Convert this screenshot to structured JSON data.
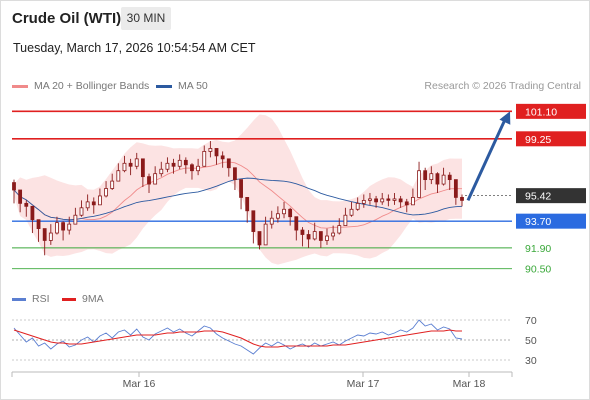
{
  "header": {
    "title": "Crude Oil (WTI)",
    "timeframe": "30 MIN",
    "datetime": "Tuesday, March 17, 2026 10:54:54 AM CET",
    "credit": "Research © 2026 Trading Central"
  },
  "legend_main": [
    {
      "label": "MA 20 + Bollinger Bands",
      "color": "#f08a8a"
    },
    {
      "label": "MA 50",
      "color": "#2c5aa0"
    }
  ],
  "legend_rsi": [
    {
      "label": "RSI",
      "color": "#5b7fd1"
    },
    {
      "label": "9MA",
      "color": "#e02020"
    }
  ],
  "colors": {
    "resistance": "#e02020",
    "current": "#333333",
    "pivot": "#2b6be0",
    "support": "#3aa83a",
    "candle": "#8a1a1a",
    "bb_fill": "#fbdada",
    "ma50": "#2c5aa0",
    "forecast_arrow": "#2c5aa0"
  },
  "chart_data": [
    {
      "type": "candlestick",
      "title": "Crude Oil (WTI)",
      "timeframe": "30 MIN",
      "x_ticks": [
        "Mar 16",
        "Mar 17",
        "Mar 18"
      ],
      "ylim": [
        89.6,
        102.0
      ],
      "levels": [
        {
          "label": "101.10",
          "value": 101.1,
          "kind": "resistance"
        },
        {
          "label": "99.25",
          "value": 99.25,
          "kind": "resistance"
        },
        {
          "label": "95.42",
          "value": 95.42,
          "kind": "current"
        },
        {
          "label": "93.70",
          "value": 93.7,
          "kind": "pivot"
        },
        {
          "label": "91.90",
          "value": 91.9,
          "kind": "support"
        },
        {
          "label": "90.50",
          "value": 90.5,
          "kind": "support"
        }
      ],
      "series": [
        {
          "name": "MA 20 + Bollinger Bands",
          "type": "band"
        },
        {
          "name": "MA 50",
          "type": "line"
        }
      ],
      "forecast": {
        "from": 95.1,
        "to": 101.1,
        "direction": "up"
      },
      "closes": [
        95.8,
        94.9,
        94.7,
        93.8,
        93.2,
        92.4,
        92.9,
        93.6,
        93.1,
        93.5,
        94.1,
        94.6,
        95.0,
        94.8,
        95.4,
        95.9,
        96.4,
        97.1,
        97.6,
        97.4,
        97.9,
        96.7,
        96.2,
        96.9,
        97.2,
        97.6,
        97.4,
        97.8,
        97.5,
        97.1,
        97.4,
        98.4,
        98.6,
        98.1,
        97.9,
        97.3,
        96.5,
        95.3,
        94.4,
        93.0,
        92.1,
        93.5,
        93.9,
        94.2,
        94.5,
        94.0,
        93.1,
        92.8,
        92.5,
        93.0,
        92.4,
        92.7,
        92.9,
        93.4,
        94.1,
        94.5,
        94.9,
        95.1,
        95.2,
        95.0,
        95.2,
        95.1,
        95.2,
        95.0,
        94.8,
        95.3,
        97.1,
        96.5,
        96.9,
        96.2,
        96.8,
        96.5,
        95.3,
        95.1
      ],
      "highs": [
        96.5,
        95.4,
        95.1,
        94.6,
        93.8,
        93.1,
        93.5,
        94.0,
        93.7,
        94.0,
        94.6,
        95.1,
        95.5,
        95.3,
        95.9,
        96.4,
        96.9,
        97.6,
        98.1,
        97.9,
        98.3,
        97.5,
        96.9,
        97.4,
        97.7,
        98.0,
        97.9,
        98.2,
        98.0,
        97.6,
        97.9,
        98.8,
        99.1,
        98.6,
        98.4,
        97.9,
        97.1,
        96.0,
        95.0,
        93.7,
        92.8,
        94.0,
        94.4,
        94.7,
        95.0,
        94.6,
        93.7,
        93.3,
        93.1,
        93.6,
        93.0,
        93.2,
        93.4,
        93.9,
        94.6,
        95.0,
        95.3,
        95.5,
        95.6,
        95.4,
        95.6,
        95.5,
        95.6,
        95.4,
        95.2,
        95.9,
        97.7,
        97.3,
        97.4,
        97.0,
        97.3,
        97.0,
        96.1,
        95.5
      ],
      "lows": [
        94.9,
        94.3,
        94.0,
        92.9,
        92.3,
        91.4,
        92.1,
        92.8,
        92.4,
        92.8,
        93.6,
        94.0,
        94.4,
        94.2,
        94.8,
        95.3,
        95.8,
        96.5,
        97.0,
        96.8,
        97.2,
        96.0,
        95.6,
        96.3,
        96.7,
        97.0,
        96.9,
        97.2,
        96.9,
        96.5,
        96.8,
        97.8,
        98.0,
        97.5,
        97.3,
        96.7,
        95.8,
        94.5,
        93.6,
        92.2,
        91.8,
        92.6,
        93.2,
        93.6,
        93.9,
        93.4,
        92.4,
        92.0,
        91.9,
        92.4,
        91.9,
        92.1,
        92.4,
        92.8,
        93.5,
        94.0,
        94.4,
        94.6,
        94.8,
        94.6,
        94.8,
        94.7,
        94.8,
        94.6,
        94.3,
        94.8,
        95.3,
        95.8,
        96.2,
        95.6,
        96.1,
        95.8,
        94.8,
        94.7
      ]
    },
    {
      "type": "line",
      "name": "RSI",
      "ylim": [
        22,
        78
      ],
      "y_ticks": [
        "70",
        "50",
        "30"
      ],
      "x_ticks": [
        "Mar 16",
        "Mar 17",
        "Mar 18"
      ],
      "reference": 50,
      "series": [
        {
          "name": "RSI",
          "values": [
            62,
            55,
            48,
            52,
            44,
            47,
            41,
            46,
            49,
            43,
            45,
            50,
            53,
            48,
            54,
            57,
            52,
            58,
            60,
            55,
            61,
            53,
            50,
            56,
            59,
            62,
            58,
            61,
            57,
            54,
            59,
            64,
            62,
            56,
            52,
            49,
            46,
            44,
            40,
            36,
            42,
            47,
            44,
            48,
            45,
            41,
            44,
            46,
            43,
            47,
            44,
            46,
            48,
            45,
            49,
            52,
            55,
            54,
            57,
            56,
            58,
            55,
            57,
            60,
            58,
            62,
            70,
            64,
            66,
            60,
            63,
            61,
            52,
            51
          ]
        },
        {
          "name": "9MA",
          "values": [
            60,
            58,
            56,
            54,
            52,
            50,
            48,
            47,
            47,
            46,
            46,
            46,
            47,
            48,
            49,
            50,
            51,
            52,
            53,
            54,
            55,
            55,
            55,
            55,
            56,
            57,
            57,
            58,
            58,
            58,
            58,
            59,
            59,
            59,
            58,
            56,
            54,
            52,
            49,
            46,
            44,
            43,
            43,
            43,
            44,
            44,
            44,
            44,
            44,
            44,
            44,
            44,
            45,
            45,
            45,
            46,
            47,
            48,
            49,
            50,
            51,
            52,
            53,
            54,
            55,
            56,
            57,
            58,
            59,
            59,
            59,
            60,
            59,
            59
          ]
        }
      ]
    }
  ]
}
